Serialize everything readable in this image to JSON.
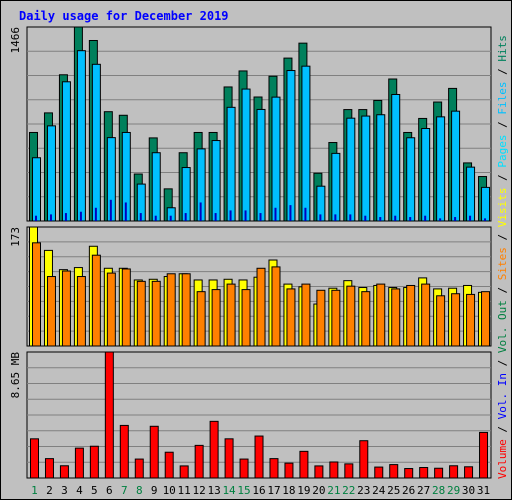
{
  "chart_data": {
    "type": "bar",
    "title": "Daily usage for December 2019",
    "days": [
      "1",
      "2",
      "3",
      "4",
      "5",
      "6",
      "7",
      "8",
      "9",
      "10",
      "11",
      "12",
      "13",
      "14",
      "15",
      "16",
      "17",
      "18",
      "19",
      "20",
      "21",
      "22",
      "23",
      "24",
      "25",
      "26",
      "27",
      "28",
      "29",
      "30",
      "31"
    ],
    "weekend_days": [
      "1",
      "7",
      "8",
      "14",
      "15",
      "21",
      "22",
      "28",
      "29"
    ],
    "colors": {
      "background": "#c0c0c0",
      "title": "#0000ff",
      "weekday_label": "#000000",
      "weekend_label": "#008040",
      "gridline": "#808080",
      "hits": "#00805c",
      "files": "#00c0ff",
      "pages": "#00e0ff",
      "visits": "#ffff00",
      "sites": "#ff8000",
      "volume": "#ff0000",
      "volume_in": "#0000ff",
      "volume_out": "#008040"
    },
    "panels": {
      "hits_files_pages": {
        "max_label": "1466",
        "ylim": [
          0,
          1466
        ],
        "series": [
          {
            "name": "Hits",
            "values": [
              669,
              817,
              1105,
              1466,
              1364,
              826,
              799,
              355,
              628,
              243,
              516,
              669,
              669,
              1013,
              1134,
              937,
              1094,
              1231,
              1344,
              361,
              593,
              842,
              842,
              911,
              1073,
              669,
              775,
              899,
              1002,
              439,
              336
            ]
          },
          {
            "name": "Files",
            "values": [
              478,
              719,
              1052,
              1287,
              1184,
              630,
              669,
              279,
              516,
              100,
              404,
              545,
              608,
              859,
              997,
              843,
              936,
              1137,
              1170,
              263,
              511,
              777,
              793,
              803,
              956,
              629,
              699,
              787,
              830,
              407,
              254
            ]
          },
          {
            "name": "Pages",
            "values": [
              40,
              50,
              60,
              70,
              100,
              160,
              140,
              60,
              40,
              40,
              60,
              140,
              60,
              80,
              80,
              60,
              100,
              120,
              100,
              50,
              50,
              50,
              40,
              30,
              40,
              30,
              40,
              20,
              30,
              40,
              20
            ]
          }
        ]
      },
      "visits_sites": {
        "max_label": "173",
        "ylim": [
          0,
          173
        ],
        "series": [
          {
            "name": "Visits",
            "values": [
              173,
              139,
              111,
              114,
              145,
              113,
              113,
              96,
              97,
              101,
              105,
              96,
              96,
              97,
              96,
              100,
              125,
              90,
              86,
              61,
              84,
              95,
              85,
              88,
              85,
              85,
              99,
              83,
              84,
              88,
              78
            ]
          },
          {
            "name": "Sites",
            "values": [
              150,
              101,
              109,
              101,
              132,
              106,
              112,
              94,
              94,
              105,
              105,
              79,
              82,
              90,
              82,
              113,
              115,
              83,
              90,
              81,
              81,
              87,
              79,
              90,
              83,
              88,
              90,
              73,
              76,
              75,
              79
            ]
          }
        ]
      },
      "volume": {
        "max_label": "8.65 MB",
        "ylim": [
          0,
          8.65
        ],
        "series": [
          {
            "name": "Volume",
            "values": [
              2.69,
              1.33,
              0.84,
              2.05,
              2.18,
              8.65,
              3.61,
              1.3,
              3.55,
              1.77,
              0.83,
              2.24,
              3.89,
              2.69,
              1.3,
              2.88,
              1.33,
              1.02,
              1.83,
              0.83,
              1.1,
              0.97,
              2.56,
              0.75,
              0.92,
              0.65,
              0.72,
              0.67,
              0.84,
              0.77,
              3.13
            ]
          }
        ]
      }
    },
    "legend": [
      "Volume",
      "Vol. In",
      "Vol. Out",
      "Sites",
      "Visits",
      "Pages",
      "Files",
      "Hits"
    ]
  }
}
